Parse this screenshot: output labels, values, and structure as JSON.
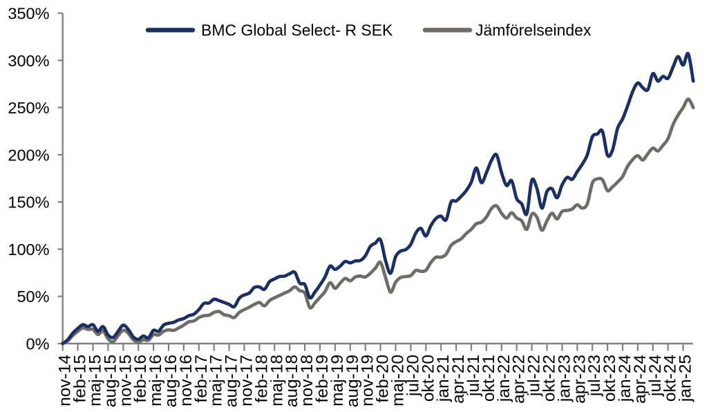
{
  "chart_data": {
    "type": "line",
    "title": "",
    "xlabel": "",
    "ylabel": "",
    "ylim": [
      0,
      350
    ],
    "y_tick_step": 50,
    "y_tick_labels": [
      "0%",
      "50%",
      "100%",
      "150%",
      "200%",
      "250%",
      "300%",
      "350%"
    ],
    "grid": false,
    "legend_position": "top",
    "x_tick_labels": [
      "nov-14",
      "feb-15",
      "maj-15",
      "aug-15",
      "nov-15",
      "feb-16",
      "maj-16",
      "aug-16",
      "nov-16",
      "feb-17",
      "maj-17",
      "aug-17",
      "nov-17",
      "feb-18",
      "maj-18",
      "aug-18",
      "nov-18",
      "feb-19",
      "maj-19",
      "aug-19",
      "nov-19",
      "feb-20",
      "maj-20",
      "jul-20",
      "okt-20",
      "jan-21",
      "apr-21",
      "jul-21",
      "okt-21",
      "jan-22",
      "apr-22",
      "jul-22",
      "okt-22",
      "jan-23",
      "apr-23",
      "jul-23",
      "okt-23",
      "jan-24",
      "apr-24",
      "jul-24",
      "okt-24",
      "jan-25"
    ],
    "x": [
      "nov-14",
      "dec-14",
      "jan-15",
      "feb-15",
      "mar-15",
      "apr-15",
      "maj-15",
      "jun-15",
      "jul-15",
      "aug-15",
      "sep-15",
      "okt-15",
      "nov-15",
      "dec-15",
      "jan-16",
      "feb-16",
      "mar-16",
      "apr-16",
      "maj-16",
      "jun-16",
      "jul-16",
      "aug-16",
      "sep-16",
      "okt-16",
      "nov-16",
      "dec-16",
      "jan-17",
      "feb-17",
      "mar-17",
      "apr-17",
      "maj-17",
      "jun-17",
      "jul-17",
      "aug-17",
      "sep-17",
      "okt-17",
      "nov-17",
      "dec-17",
      "jan-18",
      "feb-18",
      "mar-18",
      "apr-18",
      "maj-18",
      "jun-18",
      "jul-18",
      "aug-18",
      "sep-18",
      "okt-18",
      "nov-18",
      "dec-18",
      "jan-19",
      "feb-19",
      "mar-19",
      "apr-19",
      "maj-19",
      "jun-19",
      "jul-19",
      "aug-19",
      "sep-19",
      "okt-19",
      "nov-19",
      "dec-19",
      "jan-20",
      "feb-20",
      "mar-20",
      "apr-20",
      "maj-20",
      "jun-20",
      "jun-20",
      "jul-20",
      "aug-20",
      "sep-20",
      "okt-20",
      "nov-20",
      "dec-20",
      "jan-21",
      "feb-21",
      "mar-21",
      "apr-21",
      "maj-21",
      "jun-21",
      "jul-21",
      "aug-21",
      "sep-21",
      "okt-21",
      "nov-21",
      "dec-21",
      "jan-22",
      "feb-22",
      "mar-22",
      "apr-22",
      "maj-22",
      "jun-22",
      "jul-22",
      "aug-22",
      "sep-22",
      "okt-22",
      "nov-22",
      "dec-22",
      "jan-23",
      "feb-23",
      "mar-23",
      "apr-23",
      "maj-23",
      "jun-23",
      "jul-23",
      "aug-23",
      "sep-23",
      "okt-23",
      "nov-23",
      "dec-23",
      "jan-24",
      "feb-24",
      "mar-24",
      "apr-24",
      "maj-24",
      "jun-24",
      "jul-24",
      "aug-24",
      "sep-24",
      "okt-24",
      "nov-24",
      "dec-24",
      "jan-25",
      "feb-25",
      "mar-25"
    ],
    "series": [
      {
        "name": "BMC Global Select- R SEK",
        "color": "#1b2f63",
        "values": [
          0,
          4,
          11,
          16,
          20,
          18,
          20,
          13,
          18,
          9,
          6.5,
          13,
          19.5,
          15,
          7,
          4.5,
          8,
          6,
          14,
          13,
          19.5,
          21.5,
          22.5,
          25,
          26.5,
          29.5,
          31,
          36,
          42.5,
          43,
          47,
          45.5,
          43.5,
          41.5,
          39,
          48,
          51.5,
          53.5,
          59.5,
          60,
          57.5,
          65.5,
          68.5,
          71,
          71.5,
          74,
          75.5,
          64,
          62.5,
          48.5,
          54.5,
          62,
          70.5,
          82,
          78.5,
          82,
          87,
          85.5,
          87.5,
          88,
          93,
          103,
          106.5,
          110,
          88,
          74.5,
          92,
          98,
          99.5,
          105,
          117,
          122,
          114,
          125,
          132.5,
          135,
          131,
          150,
          151,
          156,
          162,
          171,
          186,
          170.5,
          181,
          194,
          200,
          181,
          167.5,
          172.5,
          153.5,
          148,
          137.5,
          173,
          164.5,
          143.5,
          161,
          164,
          154.5,
          168,
          176,
          174,
          182,
          190,
          200,
          219,
          222,
          225,
          199.5,
          205,
          228,
          238,
          252,
          267,
          276,
          271,
          269,
          286,
          278,
          283,
          281,
          293,
          304,
          295,
          307,
          278
        ]
      },
      {
        "name": "Jämförelseindex",
        "color": "#6f6c66",
        "values": [
          0,
          3,
          8.5,
          13,
          16.5,
          15,
          15,
          9.5,
          13.5,
          5,
          2,
          8.5,
          14,
          11,
          4,
          1.5,
          4,
          3.5,
          9.5,
          9,
          13,
          14.5,
          14,
          16.5,
          19.5,
          23,
          24,
          27.5,
          29.5,
          30,
          33,
          34,
          30.5,
          29.5,
          27.5,
          33,
          36,
          38.5,
          41.5,
          43.5,
          40,
          45.5,
          48.5,
          51,
          53.5,
          56,
          60,
          56,
          53.5,
          38,
          43,
          49,
          55,
          64.5,
          58.5,
          64,
          69,
          66.5,
          70.5,
          71.5,
          70.5,
          74.5,
          80,
          86,
          70,
          54.5,
          65,
          70,
          71,
          72,
          77.5,
          76.5,
          77.5,
          86,
          91.5,
          91.5,
          94.5,
          104,
          108,
          111,
          116.5,
          121,
          127,
          128.5,
          134,
          143,
          146,
          138,
          133,
          138.5,
          133,
          130,
          121,
          137,
          134,
          120,
          130,
          138,
          132,
          140,
          141,
          142.5,
          147,
          143.5,
          148,
          170,
          174.5,
          173.5,
          162,
          166,
          171,
          177,
          188,
          195,
          199,
          194.5,
          201,
          207,
          204,
          210,
          217,
          232,
          242,
          250,
          259,
          250
        ]
      }
    ]
  },
  "legend": {
    "fund_label": "BMC Global Select- R SEK",
    "index_label": "Jämförelseindex"
  },
  "colors": {
    "fund_line": "#1b2f63",
    "index_line": "#6f6c66",
    "axis": "#808080",
    "text": "#000000",
    "background": "#ffffff"
  }
}
